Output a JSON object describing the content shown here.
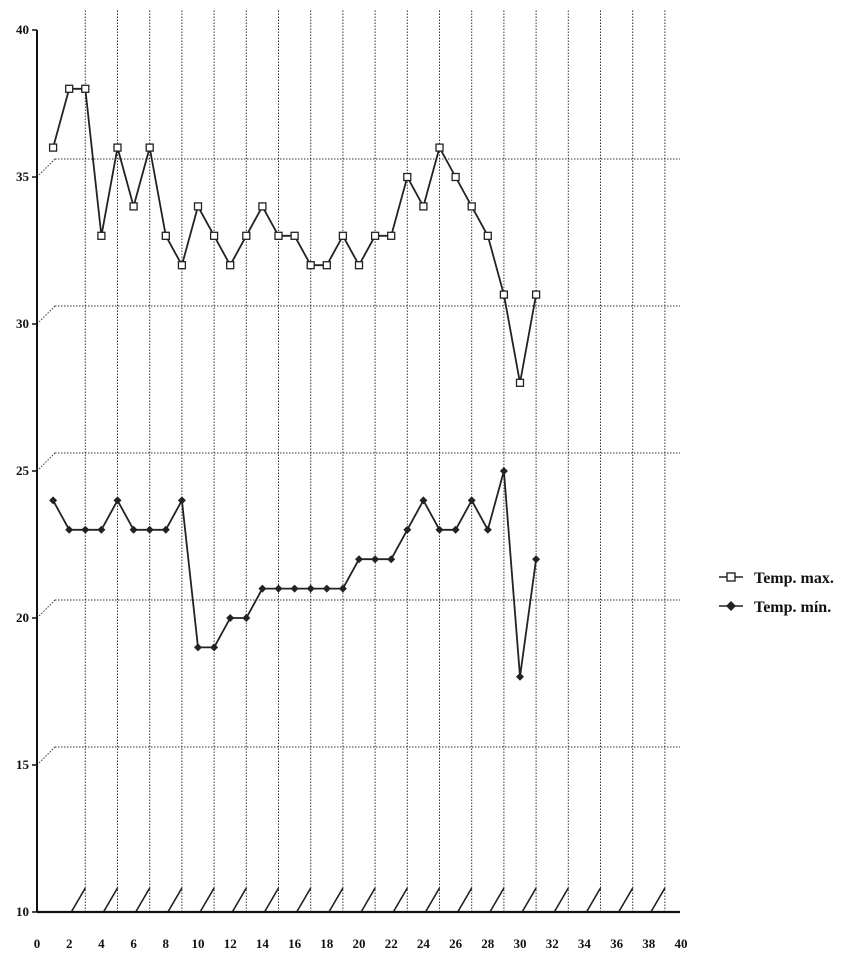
{
  "chart_data": {
    "type": "line",
    "title": "",
    "xlabel": "",
    "ylabel": "",
    "xlim": [
      0,
      40
    ],
    "ylim": [
      10,
      40
    ],
    "x_ticks": [
      0,
      2,
      4,
      6,
      8,
      10,
      12,
      14,
      16,
      18,
      20,
      22,
      24,
      26,
      28,
      30,
      32,
      34,
      36,
      38,
      40
    ],
    "y_ticks": [
      10,
      15,
      20,
      25,
      30,
      35,
      40
    ],
    "grid": "on",
    "legend_position": "right",
    "x": [
      1,
      2,
      3,
      4,
      5,
      6,
      7,
      8,
      9,
      10,
      11,
      12,
      13,
      14,
      15,
      16,
      17,
      18,
      19,
      20,
      21,
      22,
      23,
      24,
      25,
      26,
      27,
      28,
      29,
      30,
      31
    ],
    "series": [
      {
        "name": "Temp. max.",
        "marker": "square",
        "color": "#222222",
        "values": [
          36,
          38,
          38,
          33,
          36,
          34,
          36,
          33,
          32,
          34,
          33,
          32,
          33,
          34,
          33,
          33,
          32,
          32,
          33,
          32,
          33,
          33,
          35,
          34,
          36,
          35,
          34,
          33,
          31,
          28,
          31
        ]
      },
      {
        "name": "Temp. mín.",
        "marker": "diamond",
        "color": "#222222",
        "values": [
          24,
          23,
          23,
          23,
          24,
          23,
          23,
          23,
          24,
          19,
          19,
          20,
          20,
          21,
          21,
          21,
          21,
          21,
          21,
          22,
          22,
          22,
          23,
          24,
          23,
          23,
          24,
          23,
          25,
          18,
          22
        ]
      }
    ]
  }
}
